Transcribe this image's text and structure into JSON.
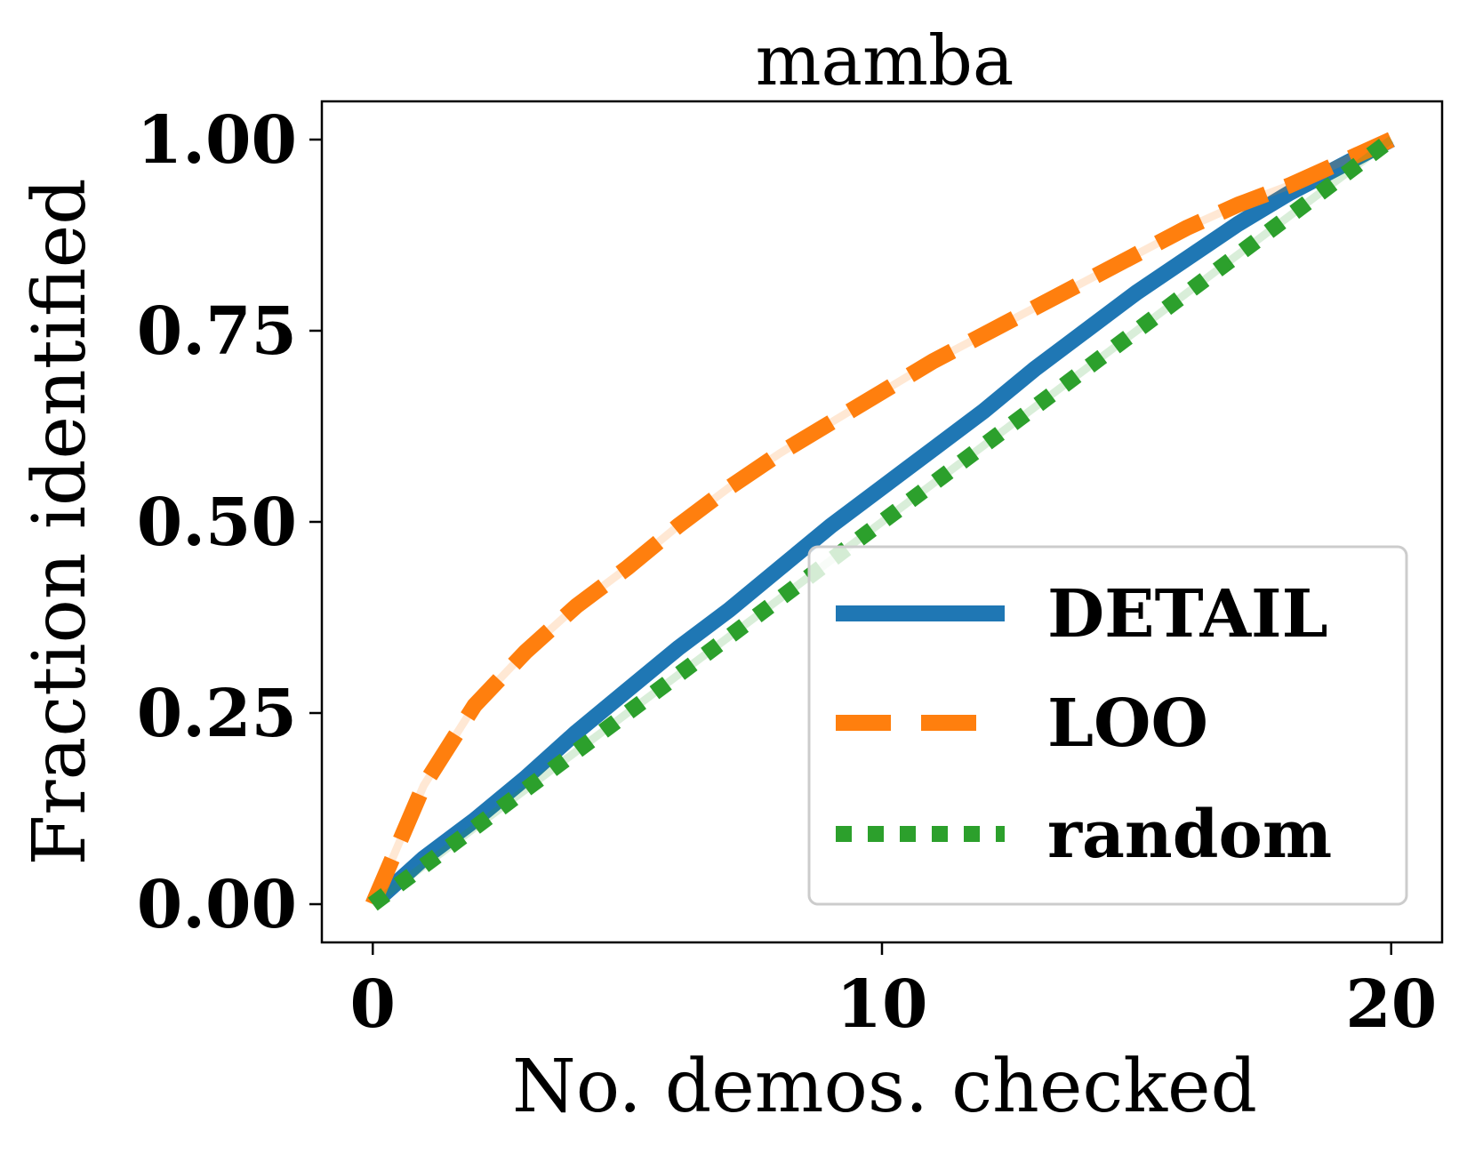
{
  "chart_data": {
    "type": "line",
    "title": "mamba",
    "xlabel": "No. demos. checked",
    "ylabel": "Fraction identified",
    "xlim": [
      -1,
      21
    ],
    "ylim": [
      -0.05,
      1.05
    ],
    "xticks": [
      0,
      10,
      20
    ],
    "xtick_labels": [
      "0",
      "10",
      "20"
    ],
    "yticks": [
      0,
      0.25,
      0.5,
      0.75,
      1.0
    ],
    "ytick_labels": [
      "0.00",
      "0.25",
      "0.50",
      "0.75",
      "1.00"
    ],
    "legend_position": "lower-right",
    "x": [
      0,
      1,
      2,
      3,
      4,
      5,
      6,
      7,
      8,
      9,
      10,
      11,
      12,
      13,
      14,
      15,
      16,
      17,
      18,
      19,
      20
    ],
    "series": [
      {
        "name": "DETAIL",
        "color": "#1f77b4",
        "style": "solid",
        "values": [
          0.0,
          0.06,
          0.11,
          0.165,
          0.225,
          0.28,
          0.335,
          0.385,
          0.44,
          0.495,
          0.545,
          0.595,
          0.645,
          0.7,
          0.75,
          0.8,
          0.845,
          0.89,
          0.93,
          0.965,
          1.0
        ]
      },
      {
        "name": "LOO",
        "color": "#ff7f0e",
        "style": "dashed",
        "values": [
          0.0,
          0.155,
          0.26,
          0.33,
          0.39,
          0.44,
          0.495,
          0.545,
          0.59,
          0.63,
          0.67,
          0.71,
          0.745,
          0.78,
          0.815,
          0.85,
          0.885,
          0.915,
          0.94,
          0.97,
          1.0
        ]
      },
      {
        "name": "random",
        "color": "#2ca02c",
        "style": "dotted",
        "values": [
          0.0,
          0.05,
          0.1,
          0.15,
          0.2,
          0.25,
          0.3,
          0.35,
          0.4,
          0.45,
          0.5,
          0.55,
          0.6,
          0.65,
          0.7,
          0.75,
          0.8,
          0.85,
          0.9,
          0.95,
          1.0
        ]
      }
    ]
  }
}
